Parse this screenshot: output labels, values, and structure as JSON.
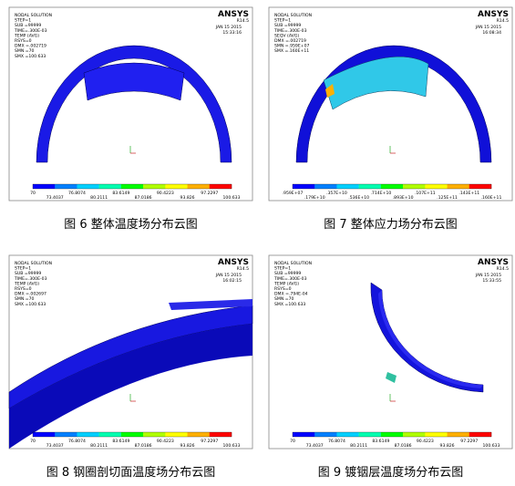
{
  "panels": [
    {
      "info": [
        "NODAL SOLUTION",
        "STEP=1",
        "SUB =99999",
        "TIME=.300E-03",
        "TEMP     (AVG)",
        "RSYS=0",
        "DMX =.002719",
        "SMN =70",
        "SMX =100.633"
      ],
      "logo": "ANSYS",
      "version": "R14.5",
      "date": "JAN 15 2015",
      "time": "15:33:16",
      "labels_top": [
        "70",
        "76.8074",
        "83.6149",
        "90.4223",
        "97.2297"
      ],
      "labels_bottom": [
        "73.4037",
        "80.2111",
        "87.0186",
        "93.826",
        "100.633"
      ],
      "caption": "图 6  整体温度场分布云图"
    },
    {
      "info": [
        "NODAL SOLUTION",
        "STEP=1",
        "SUB =99999",
        "TIME=.300E-03",
        "SEQV     (AVG)",
        "DMX =.002719",
        "SMN =.959E+07",
        "SMX =.160E+11"
      ],
      "logo": "ANSYS",
      "version": "R14.5",
      "date": "JAN 15 2015",
      "time": "16:08:34",
      "labels_top": [
        ".959E+07",
        ".357E+10",
        ".714E+10",
        ".107E+11",
        ".143E+11"
      ],
      "labels_bottom": [
        ".179E+10",
        ".536E+10",
        ".893E+10",
        ".125E+11",
        ".160E+11"
      ],
      "caption": "图 7  整体应力场分布云图"
    },
    {
      "info": [
        "NODAL SOLUTION",
        "STEP=1",
        "SUB =99999",
        "TIME=.300E-03",
        "TEMP     (AVG)",
        "RSYS=0",
        "DMX =.002697",
        "SMN =70",
        "SMX =100.633"
      ],
      "logo": "ANSYS",
      "version": "R14.5",
      "date": "JAN 15 2015",
      "time": "16:02:15",
      "labels_top": [
        "70",
        "76.8074",
        "83.6149",
        "90.4223",
        "97.2297"
      ],
      "labels_bottom": [
        "73.4037",
        "80.2111",
        "87.0186",
        "93.826",
        "100.633"
      ],
      "caption": "图 8  钢圈剖切面温度场分布云图"
    },
    {
      "info": [
        "NODAL SOLUTION",
        "STEP=1",
        "SUB =99999",
        "TIME=.300E-03",
        "TEMP     (AVG)",
        "RSYS=0",
        "DMX =.794E-04",
        "SMN =70",
        "SMX =100.633"
      ],
      "logo": "ANSYS",
      "version": "R14.5",
      "date": "JAN 15 2015",
      "time": "15:33:55",
      "labels_top": [
        "70",
        "76.8074",
        "83.6149",
        "90.4223",
        "97.2297"
      ],
      "labels_bottom": [
        "73.4037",
        "80.2111",
        "87.0186",
        "93.826",
        "100.633"
      ],
      "caption": "图 9  镀铟层温度场分布云图"
    }
  ]
}
